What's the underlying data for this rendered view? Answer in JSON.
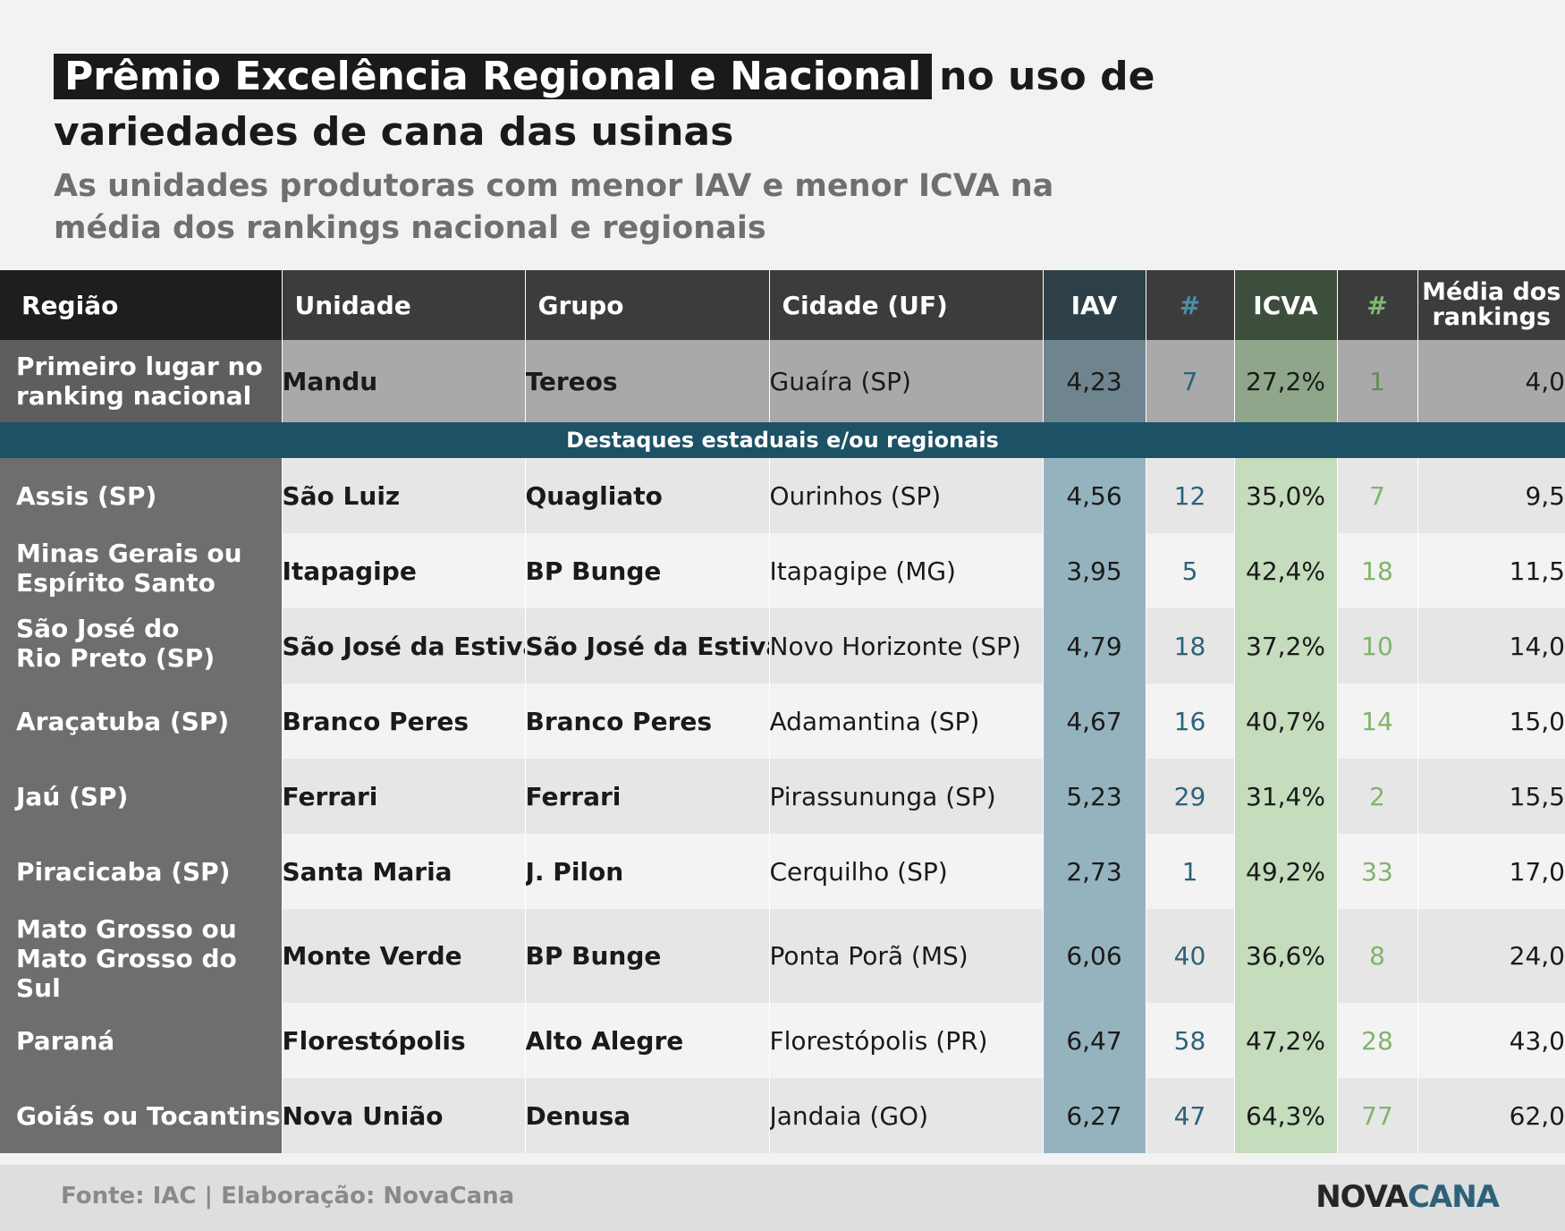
{
  "title": {
    "highlight": "Prêmio Excelência Regional e Nacional",
    "rest_line1": "no uso de",
    "line2": "variedades de cana das usinas"
  },
  "subtitle": {
    "line1": "As unidades produtoras com menor IAV e menor ICVA na",
    "line2": "média dos rankings nacional e regionais"
  },
  "chart_data": {
    "type": "table",
    "columns": [
      "Região",
      "Unidade",
      "Grupo",
      "Cidade (UF)",
      "IAV",
      "#",
      "ICVA",
      "#",
      "Média dos rankings"
    ],
    "first_place": {
      "regiao_lines": [
        "Primeiro lugar no",
        "ranking nacional"
      ],
      "unidade": "Mandu",
      "grupo": "Tereos",
      "cidade": "Guaíra (SP)",
      "iav": "4,23",
      "rank_iav": "7",
      "icva": "27,2%",
      "rank_icva": "1",
      "media": "4,0"
    },
    "section_label": "Destaques estaduais e/ou regionais",
    "rows": [
      {
        "regiao_lines": [
          "Assis (SP)",
          ""
        ],
        "unidade": "São Luiz",
        "grupo": "Quagliato",
        "cidade": "Ourinhos (SP)",
        "iav": "4,56",
        "rank_iav": "12",
        "icva": "35,0%",
        "rank_icva": "7",
        "media": "9,5"
      },
      {
        "regiao_lines": [
          "Minas Gerais ou",
          "Espírito Santo"
        ],
        "unidade": "Itapagipe",
        "grupo": "BP Bunge",
        "cidade": "Itapagipe (MG)",
        "iav": "3,95",
        "rank_iav": "5",
        "icva": "42,4%",
        "rank_icva": "18",
        "media": "11,5"
      },
      {
        "regiao_lines": [
          "São José do",
          "Rio Preto (SP)"
        ],
        "unidade": "São José da Estiva",
        "grupo": "São José da Estiva",
        "cidade": "Novo Horizonte (SP)",
        "iav": "4,79",
        "rank_iav": "18",
        "icva": "37,2%",
        "rank_icva": "10",
        "media": "14,0"
      },
      {
        "regiao_lines": [
          "Araçatuba (SP)",
          ""
        ],
        "unidade": "Branco Peres",
        "grupo": "Branco Peres",
        "cidade": "Adamantina (SP)",
        "iav": "4,67",
        "rank_iav": "16",
        "icva": "40,7%",
        "rank_icva": "14",
        "media": "15,0"
      },
      {
        "regiao_lines": [
          "Jaú (SP)",
          ""
        ],
        "unidade": "Ferrari",
        "grupo": "Ferrari",
        "cidade": "Pirassununga (SP)",
        "iav": "5,23",
        "rank_iav": "29",
        "icva": "31,4%",
        "rank_icva": "2",
        "media": "15,5"
      },
      {
        "regiao_lines": [
          "Piracicaba (SP)",
          ""
        ],
        "unidade": "Santa Maria",
        "grupo": "J. Pilon",
        "cidade": "Cerquilho (SP)",
        "iav": "2,73",
        "rank_iav": "1",
        "icva": "49,2%",
        "rank_icva": "33",
        "media": "17,0"
      },
      {
        "regiao_lines": [
          "Mato Grosso ou",
          "Mato Grosso do Sul"
        ],
        "unidade": "Monte Verde",
        "grupo": "BP Bunge",
        "cidade": "Ponta Porã (MS)",
        "iav": "6,06",
        "rank_iav": "40",
        "icva": "36,6%",
        "rank_icva": "8",
        "media": "24,0"
      },
      {
        "regiao_lines": [
          "Paraná",
          ""
        ],
        "unidade": "Florestópolis",
        "grupo": "Alto Alegre",
        "cidade": "Florestópolis (PR)",
        "iav": "6,47",
        "rank_iav": "58",
        "icva": "47,2%",
        "rank_icva": "28",
        "media": "43,0"
      },
      {
        "regiao_lines": [
          "Goiás ou Tocantins",
          ""
        ],
        "unidade": "Nova União",
        "grupo": "Denusa",
        "cidade": "Jandaia (GO)",
        "iav": "6,27",
        "rank_iav": "47",
        "icva": "64,3%",
        "rank_icva": "77",
        "media": "62,0"
      }
    ]
  },
  "header_labels": {
    "media_line1": "Média dos",
    "media_line2": "rankings"
  },
  "footer": {
    "source": "Fonte: IAC | Elaboração: NovaCana",
    "logo_part1": "NOVA",
    "logo_part2": "CANA"
  },
  "colors": {
    "iav_accent": "#2d6279",
    "icva_accent": "#7fb56b",
    "divider": "#1d5165"
  }
}
